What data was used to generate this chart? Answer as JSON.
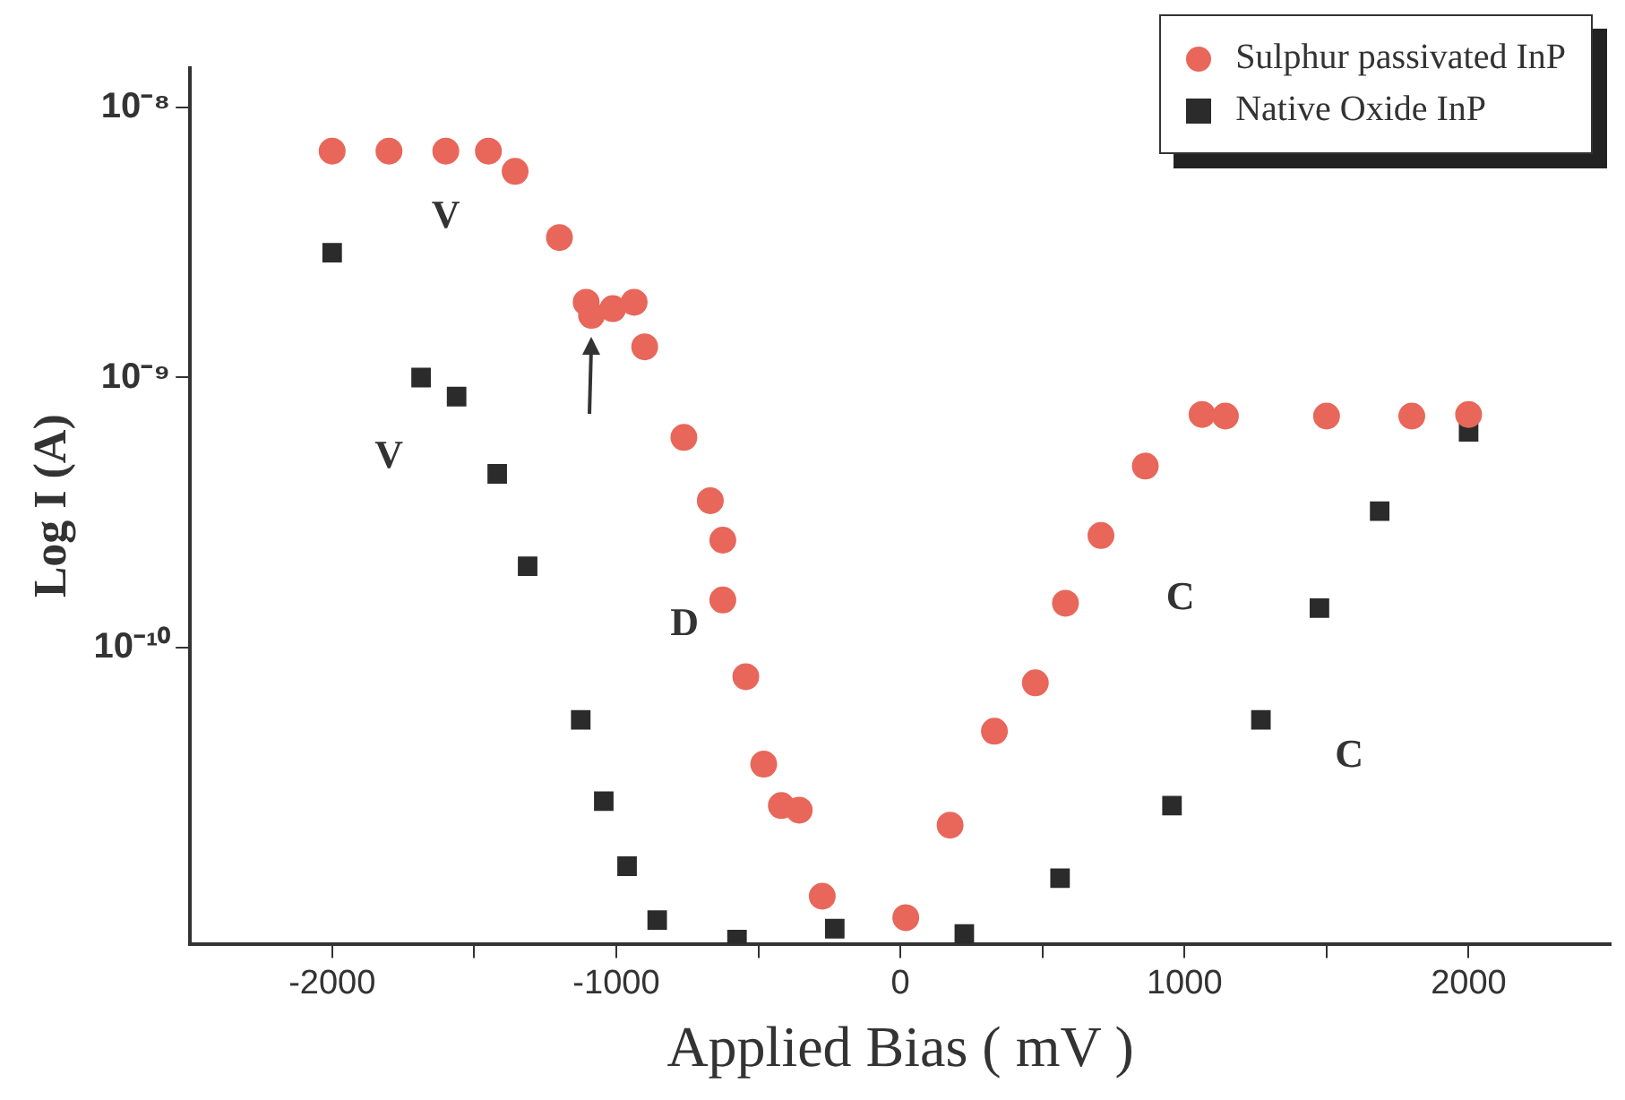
{
  "chart_data": {
    "type": "scatter",
    "xlabel": "Applied Bias ( mV )",
    "ylabel": "Log I (A)",
    "log": "y",
    "xlim": [
      -2500,
      2500
    ],
    "xticks": [
      -2000,
      {
        "value": -1500,
        "label": null
      },
      {
        "value": -1000,
        "label": "-1000"
      },
      {
        "value": -500,
        "label": null
      },
      0,
      {
        "value": 500,
        "label": null
      },
      1000,
      {
        "value": 1500,
        "label": null
      },
      2000
    ],
    "ylim": [
      8e-12,
      1.4e-08
    ],
    "yticks": [
      {
        "value": 1e-08,
        "label": "10⁻⁸"
      },
      {
        "value": 1e-09,
        "label": "10⁻⁹"
      },
      {
        "value": 1e-10,
        "label": "10⁻¹⁰"
      }
    ],
    "grid": false,
    "legend": "top right",
    "series": [
      {
        "name": "Sulphur passivated InP",
        "color": "#e8675a",
        "marker": "circle",
        "x": [
          -2000,
          -1800,
          -1600,
          -1450,
          -1356,
          -1200,
          -1106,
          -1087,
          -1012,
          -937,
          -900,
          -762,
          -669,
          -625,
          -625,
          -544,
          -481,
          -419,
          -356,
          -275,
          19,
          175,
          331,
          475,
          581,
          706,
          862,
          1062,
          1144,
          1500,
          1800,
          2000
        ],
        "values": [
          6.9e-09,
          6.9e-09,
          6.9e-09,
          6.9e-09,
          5.8e-09,
          3.3e-09,
          1.9e-09,
          1.7e-09,
          1.8e-09,
          1.9e-09,
          1.3e-09,
          6e-10,
          3.5e-10,
          2.5e-10,
          1.5e-10,
          7.8e-11,
          3.7e-11,
          2.6e-11,
          2.5e-11,
          1.2e-11,
          1e-11,
          2.2e-11,
          4.9e-11,
          7.4e-11,
          1.46e-10,
          2.6e-10,
          4.7e-10,
          7.3e-10,
          7.2e-10,
          7.2e-10,
          7.2e-10,
          7.3e-10
        ]
      },
      {
        "name": "Native Oxide InP",
        "color": "#2b2b2b",
        "marker": "square",
        "x": [
          -2000,
          -1687,
          -1562,
          -1419,
          -1312,
          -1125,
          -1044,
          -962,
          -856,
          -575,
          -231,
          225,
          562,
          956,
          1269,
          1475,
          1687,
          2000
        ],
        "values": [
          2.9e-09,
          1e-09,
          8.5e-10,
          4.4e-10,
          2e-10,
          5.4e-11,
          2.7e-11,
          1.55e-11,
          9.8e-12,
          8.3e-12,
          9.1e-12,
          8.7e-12,
          1.4e-11,
          2.6e-11,
          5.4e-11,
          1.4e-10,
          3.2e-10,
          6.3e-10
        ]
      }
    ],
    "annotations": [
      "V",
      "V",
      "D",
      "C",
      "C"
    ]
  }
}
